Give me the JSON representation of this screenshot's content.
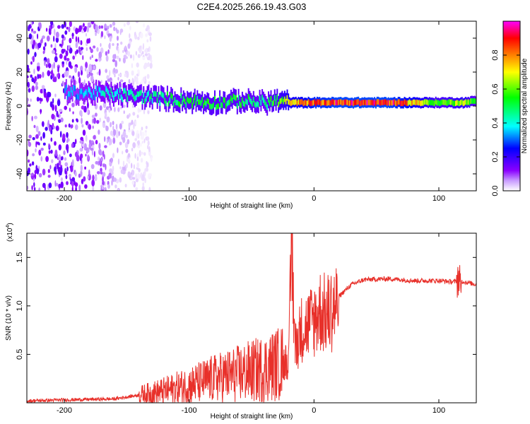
{
  "title": "C2E4.2025.266.19.43.G03",
  "chart_data": [
    {
      "type": "heatmap",
      "xlabel": "Height of straight line (km)",
      "ylabel": "Frequency (Hz)",
      "xlim": [
        -230,
        130
      ],
      "ylim": [
        -50,
        50
      ],
      "xticks": [
        -200,
        -100,
        0,
        100
      ],
      "xtick_labels": [
        "-200",
        "-100",
        "0",
        "100"
      ],
      "yticks": [
        -40,
        -20,
        0,
        20,
        40
      ],
      "ytick_labels": [
        "-40",
        "-20",
        "0",
        "20",
        "40"
      ],
      "colorbar": {
        "label": "Normalized spectral amplitude",
        "range": [
          0,
          1
        ],
        "ticks": [
          0.0,
          0.2,
          0.4,
          0.6,
          0.8
        ],
        "tick_labels": [
          "0.0",
          "0.2",
          "0.4",
          "0.6",
          "0.8"
        ],
        "colors": [
          "#ffffff",
          "#8a00ff",
          "#0000ff",
          "#00ffff",
          "#00ff00",
          "#ffff00",
          "#ff8000",
          "#ff0000",
          "#ff00ff"
        ]
      },
      "ridge": {
        "x": [
          -190,
          -160,
          -130,
          -100,
          -80,
          -60,
          -40,
          -30,
          -20,
          0,
          20,
          60,
          80,
          100,
          120,
          130
        ],
        "freq": [
          8,
          7,
          5,
          3,
          2,
          3,
          2,
          3,
          2,
          2,
          2,
          2,
          2,
          2,
          2,
          3
        ],
        "amplitude": [
          0.35,
          0.45,
          0.5,
          0.55,
          0.55,
          0.55,
          0.5,
          0.6,
          0.75,
          0.9,
          0.95,
          0.95,
          0.8,
          0.6,
          0.7,
          0.5
        ]
      },
      "noise_region_x": [
        -230,
        -140
      ]
    },
    {
      "type": "line",
      "xlabel": "Height of straight line (km)",
      "ylabel": "SNR (10 * v/v)",
      "y_multiplier": "(x10",
      "y_multiplier_exp": "4",
      "y_multiplier_close": ")",
      "xlim": [
        -230,
        130
      ],
      "ylim": [
        0,
        1.75
      ],
      "xticks": [
        -200,
        -100,
        0,
        100
      ],
      "xtick_labels": [
        "-200",
        "-100",
        "0",
        "100"
      ],
      "yticks": [
        0.5,
        1.0,
        1.5
      ],
      "ytick_labels": [
        "0.5",
        "1.0",
        "1.5"
      ],
      "color": "#e8302a",
      "envelope": {
        "x": [
          -230,
          -200,
          -160,
          -140,
          -120,
          -100,
          -80,
          -60,
          -40,
          -25,
          -20,
          -18,
          -15,
          -10,
          0,
          5,
          10,
          20,
          30,
          40,
          60,
          80,
          100,
          110,
          115,
          120,
          130
        ],
        "y": [
          0.02,
          0.03,
          0.04,
          0.08,
          0.12,
          0.18,
          0.25,
          0.3,
          0.35,
          0.42,
          0.5,
          1.75,
          0.6,
          0.8,
          0.9,
          1.0,
          0.95,
          1.1,
          1.22,
          1.27,
          1.28,
          1.26,
          1.26,
          1.25,
          1.25,
          1.25,
          1.22
        ]
      }
    }
  ]
}
